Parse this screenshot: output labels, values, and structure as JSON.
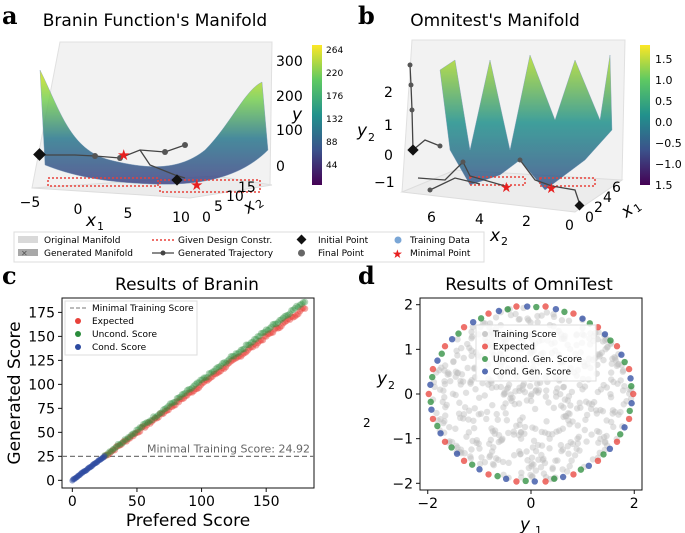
{
  "panels": {
    "a": {
      "letter": "a",
      "title": "Branin Function's Manifold",
      "x_ticks": [
        "−5",
        "0",
        "5",
        "10"
      ],
      "x_label": "x",
      "x2_ticks": [
        "15",
        "10",
        "5",
        "0"
      ],
      "x2_label": "x",
      "y_ticks": [
        "300",
        "200",
        "100",
        "0"
      ],
      "y_label": "y",
      "colorbar_ticks": [
        "264",
        "220",
        "176",
        "132",
        "88",
        "44"
      ]
    },
    "b": {
      "letter": "b",
      "title": "Omnitest's Manifold",
      "y_ticks": [
        "2",
        "1",
        "0",
        "−1"
      ],
      "y_label": "y",
      "x_ticks": [
        "6",
        "4",
        "2",
        "0"
      ],
      "x_label": "x",
      "x1_ticks": [
        "6",
        "4",
        "2",
        "0"
      ],
      "x1_label": "x",
      "colorbar_ticks": [
        "1.5",
        "1.0",
        "0.5",
        "0.0",
        "−0.5",
        "−1.0",
        "1.5"
      ]
    },
    "c": {
      "letter": "c",
      "title": "Results of Branin"
    },
    "d": {
      "letter": "d",
      "title": "Results of OmniTest",
      "stray_label": "2"
    }
  },
  "legend_top": {
    "original_manifold": "Original Manifold",
    "generated_manifold": "Generated Manifold",
    "design_constraint": "Given Design Constr.",
    "generated_trajectory": "Generated Trajectory",
    "initial_point": "Initial Point",
    "final_point": "Final Point",
    "training_data": "Training Data",
    "minimal_point": "Minimal Point"
  },
  "colors": {
    "expected": "#e8413a",
    "uncond": "#2a8c3b",
    "cond": "#2c4aa0",
    "training": "#bdbdbd",
    "threshold": "#777777"
  },
  "chart_data": [
    {
      "type": "scatter",
      "title": "Results of Branin",
      "xlabel": "Prefered Score",
      "ylabel": "Generated Score",
      "xlim": [
        -8,
        187
      ],
      "ylim": [
        -8,
        190
      ],
      "xticks": [
        0,
        50,
        100,
        150
      ],
      "yticks": [
        0,
        25,
        50,
        75,
        100,
        125,
        150,
        175
      ],
      "legend": [
        "Minimal Training Score",
        "Expected",
        "Uncond. Score",
        "Cond. Score"
      ],
      "threshold": {
        "value": 24.92,
        "label": "Minimal Training Score: 24.92"
      },
      "series": [
        {
          "name": "Expected",
          "x_range": [
            25,
            180
          ],
          "slope": 1.0,
          "intercept": 0
        },
        {
          "name": "Uncond. Score",
          "x_range": [
            25,
            180
          ],
          "slope": 1.04,
          "intercept": 0
        },
        {
          "name": "Cond. Score",
          "x_range": [
            0,
            25
          ],
          "slope": 1.0,
          "intercept": 0
        }
      ]
    },
    {
      "type": "scatter",
      "title": "Results of OmniTest",
      "xlabel": "y",
      "ylabel": "y",
      "xlim": [
        -2.15,
        2.15
      ],
      "ylim": [
        -2.15,
        2.15
      ],
      "xticks": [
        -2,
        0,
        2
      ],
      "yticks": [
        2,
        1,
        0,
        -1,
        -2
      ],
      "legend": [
        "Training Score",
        "Expected",
        "Uncond. Gen. Score",
        "Cond. Gen. Score"
      ],
      "series": [
        {
          "name": "Training Score",
          "region": "disk",
          "radius": 1.95
        },
        {
          "name": "Expected",
          "region": "ring",
          "radius": 1.98
        },
        {
          "name": "Uncond. Gen. Score",
          "region": "ring",
          "radius": 1.95
        },
        {
          "name": "Cond. Gen. Score",
          "region": "ring",
          "radius": 1.96
        }
      ]
    }
  ]
}
